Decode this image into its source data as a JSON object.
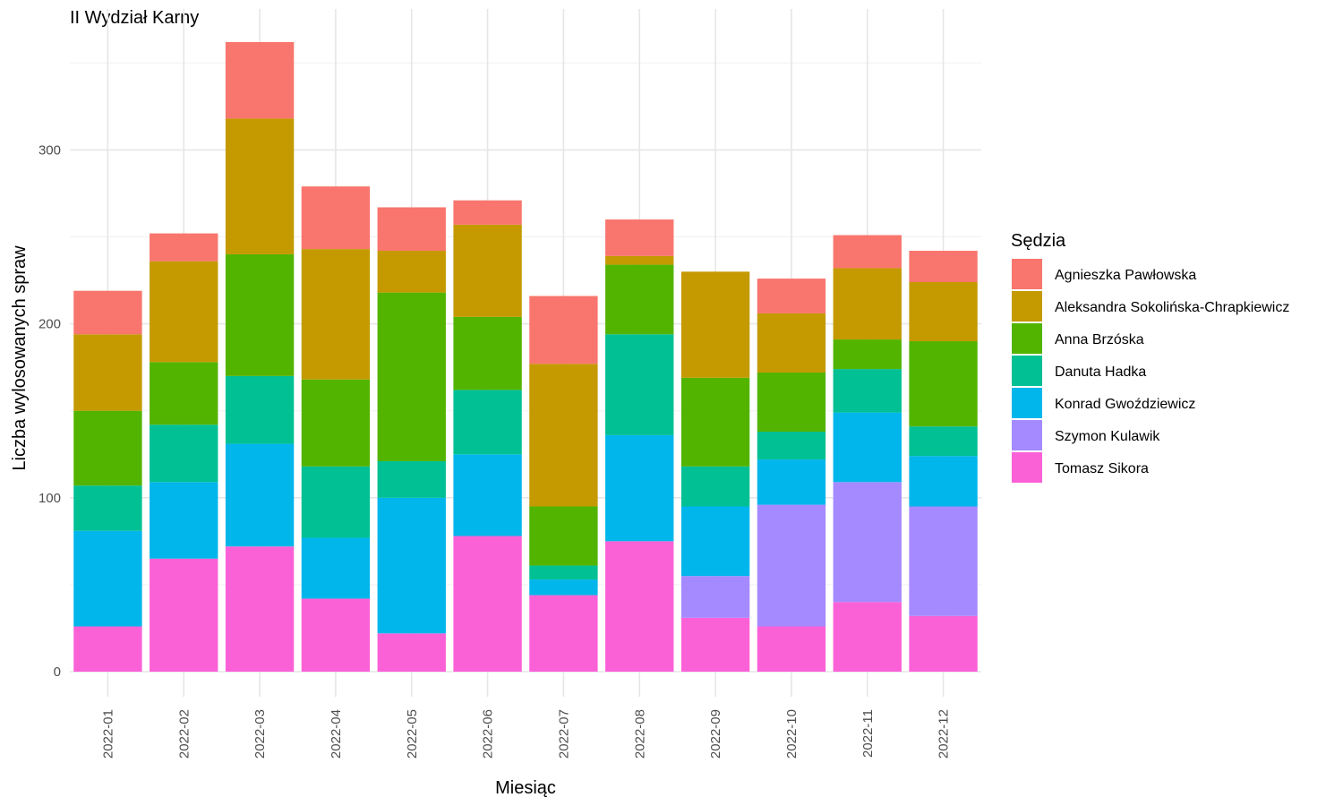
{
  "chart_data": {
    "type": "bar",
    "stacked": true,
    "title": "II Wydział Karny",
    "xlabel": "Miesiąc",
    "ylabel": "Liczba wylosowanych spraw",
    "legend_title": "Sędzia",
    "legend_position": "right",
    "grid": true,
    "ylim": [
      0,
      370
    ],
    "yticks": [
      0,
      100,
      200,
      300
    ],
    "ytick_labels": [
      "0",
      "100",
      "200",
      "300"
    ],
    "categories": [
      "2022-01",
      "2022-02",
      "2022-03",
      "2022-04",
      "2022-05",
      "2022-06",
      "2022-07",
      "2022-08",
      "2022-09",
      "2022-10",
      "2022-11",
      "2022-12"
    ],
    "series": [
      {
        "name": "Agnieszka Pawłowska",
        "color": "#F8766D",
        "values": [
          25,
          16,
          44,
          36,
          25,
          14,
          39,
          21,
          0,
          20,
          19,
          18
        ]
      },
      {
        "name": "Aleksandra Sokolińska-Chrapkiewicz",
        "color": "#C49A00",
        "values": [
          44,
          58,
          78,
          75,
          24,
          53,
          82,
          5,
          61,
          34,
          41,
          34
        ]
      },
      {
        "name": "Anna Brzóska",
        "color": "#53B400",
        "values": [
          43,
          36,
          70,
          50,
          97,
          42,
          34,
          40,
          51,
          34,
          17,
          49
        ]
      },
      {
        "name": "Danuta Hadka",
        "color": "#00C094",
        "values": [
          26,
          33,
          39,
          41,
          21,
          37,
          8,
          58,
          23,
          16,
          25,
          17
        ]
      },
      {
        "name": "Konrad Gwoździewicz",
        "color": "#00B6EB",
        "values": [
          55,
          44,
          59,
          35,
          78,
          47,
          9,
          61,
          40,
          26,
          40,
          29
        ]
      },
      {
        "name": "Szymon Kulawik",
        "color": "#A58AFF",
        "values": [
          0,
          0,
          0,
          0,
          0,
          0,
          0,
          0,
          24,
          70,
          69,
          63
        ]
      },
      {
        "name": "Tomasz Sikora",
        "color": "#FB61D7",
        "values": [
          26,
          65,
          72,
          42,
          22,
          78,
          44,
          75,
          31,
          26,
          40,
          32
        ]
      }
    ],
    "stack_order_bottom_to_top": [
      "Tomasz Sikora",
      "Szymon Kulawik",
      "Konrad Gwoździewicz",
      "Danuta Hadka",
      "Anna Brzóska",
      "Aleksandra Sokolińska-Chrapkiewicz",
      "Agnieszka Pawłowska"
    ]
  }
}
